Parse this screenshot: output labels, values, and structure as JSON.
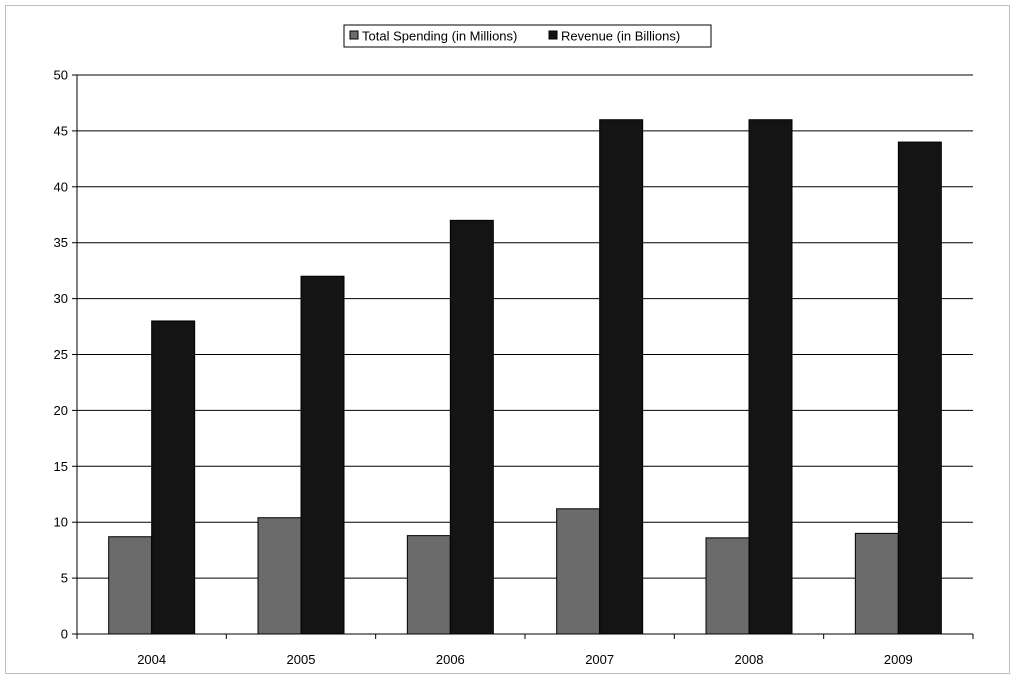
{
  "chart_data": {
    "type": "bar",
    "categories": [
      "2004",
      "2005",
      "2006",
      "2007",
      "2008",
      "2009"
    ],
    "series": [
      {
        "name": "Total Spending (in Millions)",
        "color": "#6b6b6b",
        "values": [
          8.7,
          10.4,
          8.8,
          11.2,
          8.6,
          9.0
        ]
      },
      {
        "name": "Revenue (in Billions)",
        "color": "#141414",
        "values": [
          28,
          32,
          37,
          46,
          46,
          44
        ]
      }
    ],
    "ylim": [
      0,
      50
    ],
    "yticks": [
      0,
      5,
      10,
      15,
      20,
      25,
      30,
      35,
      40,
      45,
      50
    ],
    "grid": true,
    "legend_position": "top-center"
  }
}
